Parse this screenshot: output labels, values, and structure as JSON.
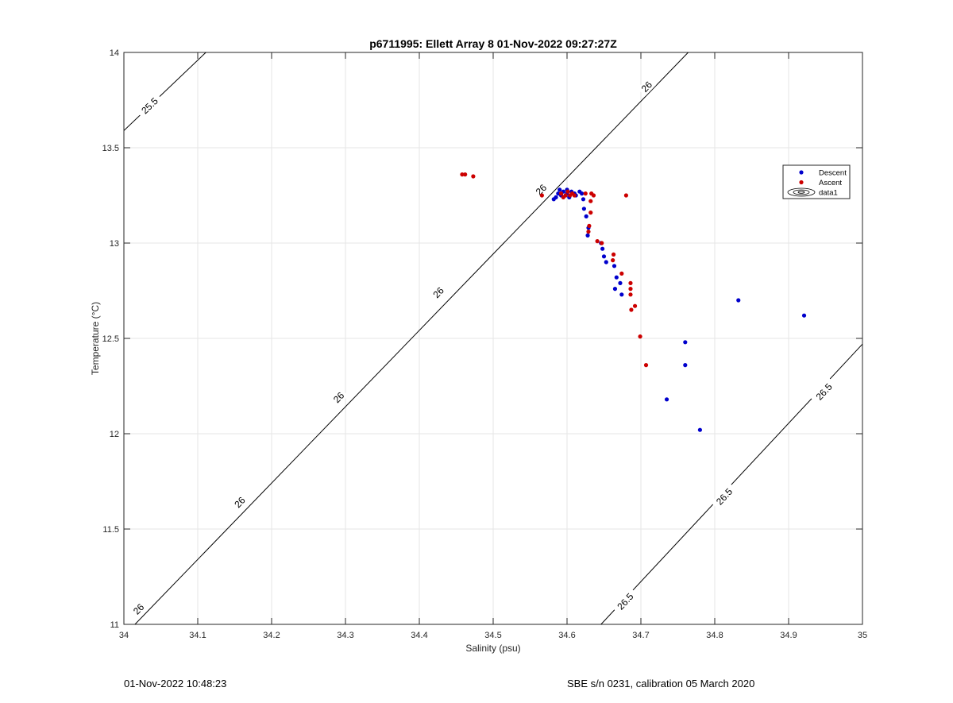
{
  "chart_data": {
    "type": "scatter",
    "title": "p6711995: Ellett Array 8 01-Nov-2022 09:27:27Z",
    "xlabel": "Salinity (psu)",
    "ylabel": "Temperature (°C)",
    "xlim": [
      34,
      35
    ],
    "ylim": [
      11,
      14
    ],
    "x_ticks": [
      34,
      34.1,
      34.2,
      34.3,
      34.4,
      34.5,
      34.6,
      34.7,
      34.8,
      34.9,
      35
    ],
    "x_tick_labels": [
      "34",
      "34.1",
      "34.2",
      "34.3",
      "34.4",
      "34.5",
      "34.6",
      "34.7",
      "34.8",
      "34.9",
      "35"
    ],
    "y_ticks": [
      11,
      11.5,
      12,
      12.5,
      13,
      13.5,
      14
    ],
    "y_tick_labels": [
      "11",
      "11.5",
      "12",
      "12.5",
      "13",
      "13.5",
      "14"
    ],
    "grid": true,
    "legend_position": "top-right",
    "legend": [
      {
        "label": "Descent",
        "color": "#0000cc",
        "marker": "dot"
      },
      {
        "label": "Ascent",
        "color": "#cc0000",
        "marker": "dot"
      },
      {
        "label": "data1",
        "color": "#000000",
        "marker": "contour"
      }
    ],
    "series": [
      {
        "name": "Descent",
        "color": "#0000cc",
        "points": [
          [
            34.585,
            13.24
          ],
          [
            34.588,
            13.26
          ],
          [
            34.59,
            13.28
          ],
          [
            34.592,
            13.25
          ],
          [
            34.595,
            13.27
          ],
          [
            34.598,
            13.25
          ],
          [
            34.6,
            13.26
          ],
          [
            34.603,
            13.24
          ],
          [
            34.606,
            13.27
          ],
          [
            34.61,
            13.26
          ],
          [
            34.582,
            13.23
          ],
          [
            34.6,
            13.28
          ],
          [
            34.612,
            13.25
          ],
          [
            34.617,
            13.27
          ],
          [
            34.62,
            13.26
          ],
          [
            34.622,
            13.23
          ],
          [
            34.623,
            13.18
          ],
          [
            34.626,
            13.14
          ],
          [
            34.629,
            13.08
          ],
          [
            34.628,
            13.04
          ],
          [
            34.646,
            13.0
          ],
          [
            34.648,
            12.97
          ],
          [
            34.65,
            12.93
          ],
          [
            34.653,
            12.9
          ],
          [
            34.664,
            12.88
          ],
          [
            34.667,
            12.82
          ],
          [
            34.672,
            12.79
          ],
          [
            34.665,
            12.76
          ],
          [
            34.674,
            12.73
          ],
          [
            34.832,
            12.7
          ],
          [
            34.921,
            12.62
          ],
          [
            34.76,
            12.48
          ],
          [
            34.76,
            12.36
          ],
          [
            34.735,
            12.18
          ],
          [
            34.78,
            12.02
          ]
        ]
      },
      {
        "name": "Ascent",
        "color": "#cc0000",
        "points": [
          [
            34.458,
            13.36
          ],
          [
            34.462,
            13.36
          ],
          [
            34.473,
            13.35
          ],
          [
            34.566,
            13.25
          ],
          [
            34.592,
            13.26
          ],
          [
            34.595,
            13.24
          ],
          [
            34.598,
            13.25
          ],
          [
            34.601,
            13.27
          ],
          [
            34.604,
            13.25
          ],
          [
            34.607,
            13.26
          ],
          [
            34.61,
            13.25
          ],
          [
            34.625,
            13.26
          ],
          [
            34.633,
            13.26
          ],
          [
            34.636,
            13.25
          ],
          [
            34.68,
            13.25
          ],
          [
            34.632,
            13.22
          ],
          [
            34.632,
            13.16
          ],
          [
            34.63,
            13.09
          ],
          [
            34.629,
            13.06
          ],
          [
            34.641,
            13.01
          ],
          [
            34.647,
            13.0
          ],
          [
            34.663,
            12.94
          ],
          [
            34.662,
            12.91
          ],
          [
            34.674,
            12.84
          ],
          [
            34.686,
            12.79
          ],
          [
            34.686,
            12.76
          ],
          [
            34.686,
            12.73
          ],
          [
            34.692,
            12.67
          ],
          [
            34.687,
            12.65
          ],
          [
            34.699,
            12.51
          ],
          [
            34.707,
            12.36
          ]
        ]
      }
    ],
    "contours": [
      {
        "level": "25.5",
        "points": [
          [
            34.0,
            13.59
          ],
          [
            34.111,
            14.0
          ]
        ],
        "labels": [
          {
            "text": "25.5",
            "x": 34.035,
            "y": 13.72
          }
        ]
      },
      {
        "level": "26",
        "points": [
          [
            34.0,
            10.94
          ],
          [
            34.764,
            14.0
          ]
        ],
        "labels": [
          {
            "text": "26",
            "x": 34.02,
            "y": 11.08
          },
          {
            "text": "26",
            "x": 34.157,
            "y": 11.64
          },
          {
            "text": "26",
            "x": 34.291,
            "y": 12.19
          },
          {
            "text": "26",
            "x": 34.426,
            "y": 12.74
          },
          {
            "text": "26",
            "x": 34.565,
            "y": 13.28
          },
          {
            "text": "26",
            "x": 34.708,
            "y": 13.82
          }
        ]
      },
      {
        "level": "26.5",
        "points": [
          [
            34.646,
            11.0
          ],
          [
            35.0,
            12.47
          ]
        ],
        "labels": [
          {
            "text": "26.5",
            "x": 34.679,
            "y": 11.12
          },
          {
            "text": "26.5",
            "x": 34.813,
            "y": 11.67
          },
          {
            "text": "26.5",
            "x": 34.948,
            "y": 12.22
          }
        ]
      }
    ]
  },
  "footer": {
    "timestamp": "01-Nov-2022 10:48:23",
    "sensor_info": "SBE s/n 0231, calibration 05 March 2020"
  }
}
